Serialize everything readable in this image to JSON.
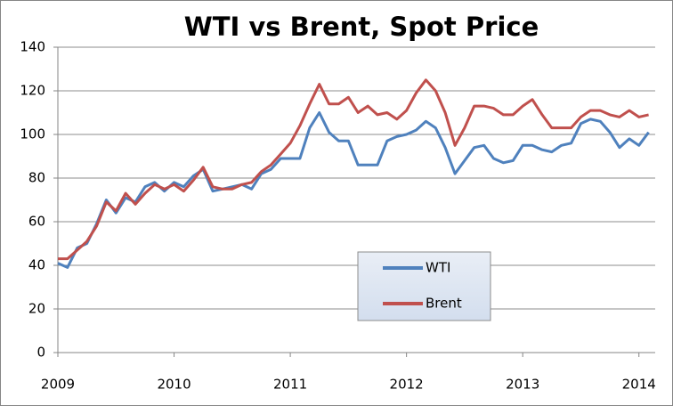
{
  "chart_data": {
    "type": "line",
    "title": "WTI vs Brent, Spot Price",
    "x": [
      2009,
      2009.083,
      2009.167,
      2009.25,
      2009.333,
      2009.417,
      2009.5,
      2009.583,
      2009.667,
      2009.75,
      2009.833,
      2009.917,
      2010,
      2010.083,
      2010.167,
      2010.25,
      2010.333,
      2010.417,
      2010.5,
      2010.583,
      2010.667,
      2010.75,
      2010.833,
      2010.917,
      2011,
      2011.083,
      2011.167,
      2011.25,
      2011.333,
      2011.417,
      2011.5,
      2011.583,
      2011.667,
      2011.75,
      2011.833,
      2011.917,
      2012,
      2012.083,
      2012.167,
      2012.25,
      2012.333,
      2012.417,
      2012.5,
      2012.583,
      2012.667,
      2012.75,
      2012.833,
      2012.917,
      2013,
      2013.083,
      2013.167,
      2013.25,
      2013.333,
      2013.417,
      2013.5,
      2013.583,
      2013.667,
      2013.75,
      2013.833,
      2013.917,
      2014,
      2014.083
    ],
    "series": [
      {
        "name": "WTI",
        "color": "#4f81bd",
        "values": [
          41,
          39,
          48,
          50,
          59,
          70,
          64,
          71,
          69,
          76,
          78,
          74,
          78,
          76,
          81,
          84,
          74,
          75,
          76,
          77,
          75,
          82,
          84,
          89,
          89,
          89,
          103,
          110,
          101,
          97,
          97,
          86,
          86,
          86,
          97,
          99,
          100,
          102,
          106,
          103,
          94,
          82,
          88,
          94,
          95,
          89,
          87,
          88,
          95,
          95,
          93,
          92,
          95,
          96,
          105,
          107,
          106,
          101,
          94,
          98,
          95,
          101
        ]
      },
      {
        "name": "Brent",
        "color": "#c0504d",
        "values": [
          43,
          43,
          47,
          51,
          58,
          69,
          65,
          73,
          68,
          73,
          77,
          75,
          77,
          74,
          79,
          85,
          76,
          75,
          75,
          77,
          78,
          83,
          86,
          91,
          96,
          104,
          114,
          123,
          114,
          114,
          117,
          110,
          113,
          109,
          110,
          107,
          111,
          119,
          125,
          120,
          110,
          95,
          103,
          113,
          113,
          112,
          109,
          109,
          113,
          116,
          109,
          103,
          103,
          103,
          108,
          111,
          111,
          109,
          108,
          111,
          108,
          109
        ]
      }
    ],
    "xlim": [
      2009,
      2014.14
    ],
    "xticks": [
      2009,
      2010,
      2011,
      2012,
      2013,
      2014
    ],
    "ylim": [
      0,
      140
    ],
    "yticks": [
      0,
      20,
      40,
      60,
      80,
      100,
      120,
      140
    ],
    "grid": true
  }
}
